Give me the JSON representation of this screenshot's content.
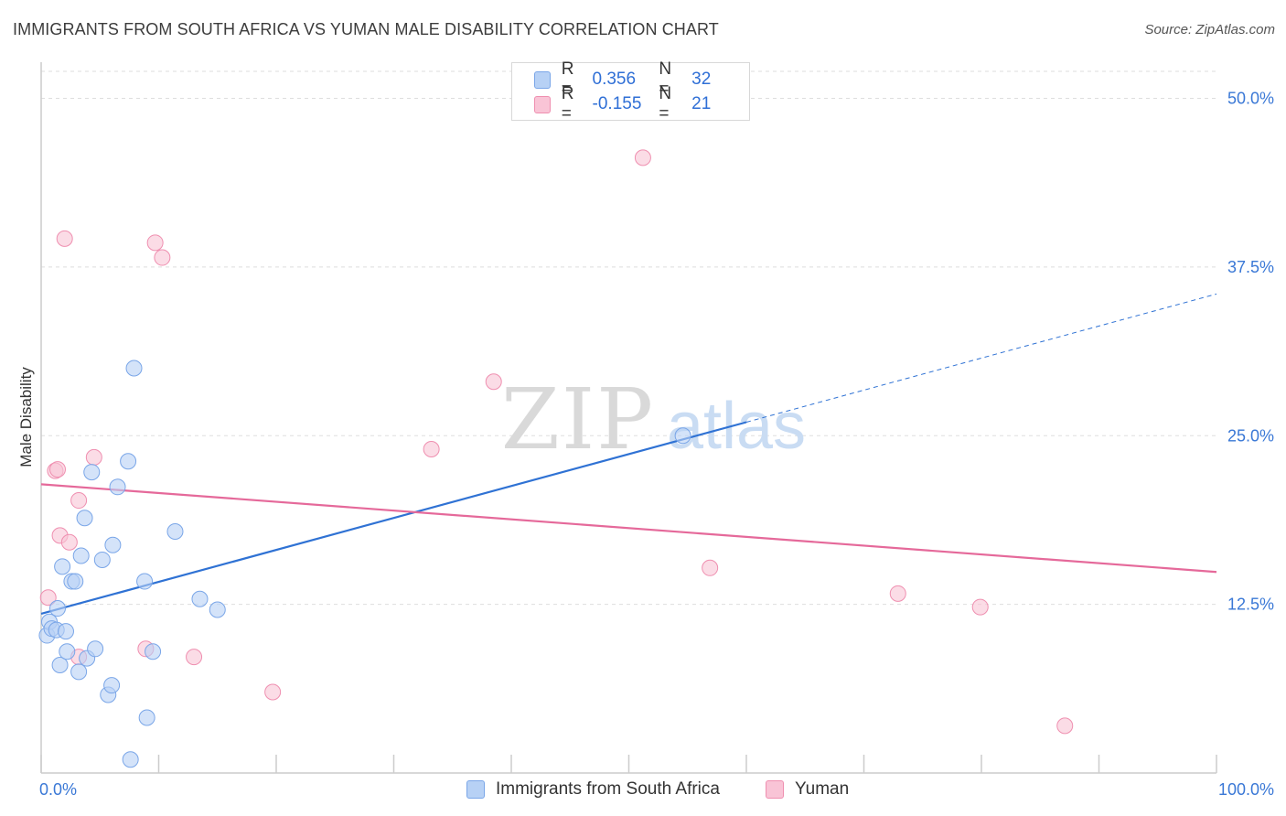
{
  "title": "IMMIGRANTS FROM SOUTH AFRICA VS YUMAN MALE DISABILITY CORRELATION CHART",
  "source": "Source: ZipAtlas.com",
  "watermark": {
    "zip": "ZIP",
    "atlas": "atlas"
  },
  "legend": {
    "r_label": "R =",
    "n_label": "N =",
    "series1": {
      "r": "0.356",
      "n": "32"
    },
    "series2": {
      "r": "-0.155",
      "n": "21"
    }
  },
  "bottom_legend": {
    "series1": "Immigrants from South Africa",
    "series2": "Yuman"
  },
  "colors": {
    "blue_fill": "#b7d1f5",
    "blue_stroke": "#7aa6e8",
    "blue_line": "#2f72d4",
    "pink_fill": "#f9c4d6",
    "pink_stroke": "#ef8fb0",
    "pink_line": "#e5699a",
    "tick_text": "#3a78d6"
  },
  "chart_data": {
    "type": "scatter",
    "title": "IMMIGRANTS FROM SOUTH AFRICA VS YUMAN MALE DISABILITY CORRELATION CHART",
    "xlabel": "",
    "ylabel": "Male Disability",
    "xlim": [
      0,
      100
    ],
    "ylim": [
      0,
      52
    ],
    "x_tick_labels": [
      "0.0%",
      "100.0%"
    ],
    "y_ticks": [
      12.5,
      25.0,
      37.5,
      50.0
    ],
    "y_tick_labels": [
      "12.5%",
      "25.0%",
      "37.5%",
      "50.0%"
    ],
    "grid": true,
    "series": [
      {
        "name": "Immigrants from South Africa",
        "r": 0.356,
        "n": 32,
        "points": [
          [
            0.5,
            10.2
          ],
          [
            0.7,
            11.2
          ],
          [
            0.9,
            10.7
          ],
          [
            1.3,
            10.6
          ],
          [
            1.4,
            12.2
          ],
          [
            1.6,
            8.0
          ],
          [
            1.8,
            15.3
          ],
          [
            2.1,
            10.5
          ],
          [
            2.2,
            9.0
          ],
          [
            2.6,
            14.2
          ],
          [
            2.9,
            14.2
          ],
          [
            3.2,
            7.5
          ],
          [
            3.4,
            16.1
          ],
          [
            3.7,
            18.9
          ],
          [
            3.9,
            8.5
          ],
          [
            4.3,
            22.3
          ],
          [
            4.6,
            9.2
          ],
          [
            5.2,
            15.8
          ],
          [
            5.7,
            5.8
          ],
          [
            6.0,
            6.5
          ],
          [
            6.1,
            16.9
          ],
          [
            6.5,
            21.2
          ],
          [
            7.4,
            23.1
          ],
          [
            7.9,
            30.0
          ],
          [
            7.6,
            1.0
          ],
          [
            8.8,
            14.2
          ],
          [
            9.0,
            4.1
          ],
          [
            9.5,
            9.0
          ],
          [
            11.4,
            17.9
          ],
          [
            13.5,
            12.9
          ],
          [
            15.0,
            12.1
          ],
          [
            54.6,
            25.0
          ]
        ],
        "trend": {
          "x0": 0.0,
          "y0": 11.8,
          "x1": 60.0,
          "y1": 26.0,
          "dash_to_x": 100.0,
          "dash_to_y": 35.5
        }
      },
      {
        "name": "Yuman",
        "r": -0.155,
        "n": 21,
        "points": [
          [
            0.6,
            13.0
          ],
          [
            1.2,
            22.4
          ],
          [
            1.6,
            17.6
          ],
          [
            2.0,
            39.6
          ],
          [
            2.4,
            17.1
          ],
          [
            3.2,
            20.2
          ],
          [
            3.2,
            8.6
          ],
          [
            4.5,
            23.4
          ],
          [
            8.9,
            9.2
          ],
          [
            9.7,
            39.3
          ],
          [
            10.3,
            38.2
          ],
          [
            13.0,
            8.6
          ],
          [
            19.7,
            6.0
          ],
          [
            33.2,
            24.0
          ],
          [
            38.5,
            29.0
          ],
          [
            51.2,
            45.6
          ],
          [
            56.9,
            15.2
          ],
          [
            72.9,
            13.3
          ],
          [
            79.9,
            12.3
          ],
          [
            87.1,
            3.5
          ],
          [
            1.4,
            22.5
          ]
        ],
        "trend": {
          "x0": 0.0,
          "y0": 21.4,
          "x1": 100.0,
          "y1": 14.9
        }
      }
    ]
  }
}
